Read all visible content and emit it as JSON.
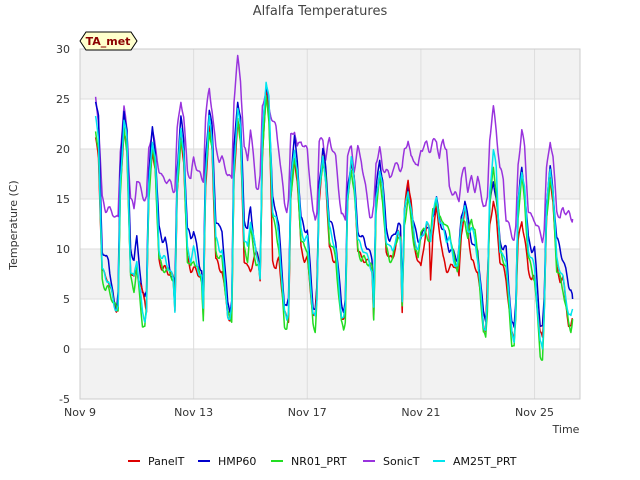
{
  "chart_data": {
    "type": "line",
    "title": "Alfalfa Temperatures",
    "xlabel": "Time",
    "ylabel": "Temperature (C)",
    "tag": "TA_met",
    "xlim": [
      0,
      17.6
    ],
    "ylim": [
      -5,
      30
    ],
    "y_ticks": [
      -5,
      0,
      5,
      10,
      15,
      20,
      25,
      30
    ],
    "x_ticks": [
      {
        "value": 0,
        "label": "Nov 9"
      },
      {
        "value": 4,
        "label": "Nov 13"
      },
      {
        "value": 8,
        "label": "Nov 17"
      },
      {
        "value": 12,
        "label": "Nov 21"
      },
      {
        "value": 16,
        "label": "Nov 25"
      }
    ],
    "grid": true,
    "legend_position": "bottom",
    "days": 18,
    "series": [
      {
        "name": "PanelT",
        "color": "#dd0000",
        "days": [
          [
            7,
            4,
            21
          ],
          [
            7,
            4,
            22
          ],
          [
            8,
            4,
            20
          ],
          [
            8,
            4,
            21
          ],
          [
            8,
            3,
            22
          ],
          [
            8,
            3,
            23
          ],
          [
            8,
            7,
            26
          ],
          [
            9,
            3,
            19
          ],
          [
            9,
            6,
            19
          ],
          [
            9,
            3,
            19
          ],
          [
            9,
            3,
            18
          ],
          [
            9,
            4,
            17
          ],
          [
            8,
            7,
            14
          ],
          [
            8,
            7,
            14
          ],
          [
            8,
            7,
            15
          ],
          [
            7,
            4,
            13
          ],
          [
            7,
            4,
            17
          ],
          [
            7,
            3,
            17
          ]
        ],
        "tmins": [
          3,
          4,
          5,
          7,
          7,
          3,
          9,
          3,
          3,
          3,
          8,
          11,
          12,
          8,
          2,
          1,
          1,
          2
        ]
      },
      {
        "name": "HMP60",
        "color": "#0000cc",
        "days": [
          [
            9,
            5,
            25
          ],
          [
            9,
            6,
            24
          ],
          [
            11,
            6,
            22
          ],
          [
            11,
            6,
            23
          ],
          [
            12,
            5,
            24
          ],
          [
            12,
            5,
            25
          ],
          [
            14,
            8,
            26
          ],
          [
            12,
            5,
            21
          ],
          [
            12,
            6,
            20
          ],
          [
            11,
            5,
            19
          ],
          [
            11,
            5,
            19
          ],
          [
            11,
            6,
            16
          ],
          [
            11,
            11,
            15
          ],
          [
            10,
            10,
            15
          ],
          [
            10,
            6,
            17
          ],
          [
            10,
            5,
            18
          ],
          [
            10,
            5,
            18
          ],
          [
            9,
            5,
            18
          ]
        ],
        "tmins": [
          3,
          4,
          5,
          7,
          8,
          4,
          9,
          4,
          4,
          4,
          9,
          12,
          12,
          9,
          3,
          2,
          2,
          6
        ]
      },
      {
        "name": "NR01_PRT",
        "color": "#22dd22",
        "days": [
          [
            6,
            4,
            22
          ],
          [
            6,
            4,
            22
          ],
          [
            8,
            4,
            20
          ],
          [
            8,
            4,
            21
          ],
          [
            9,
            3,
            22
          ],
          [
            9,
            3,
            23
          ],
          [
            12,
            7,
            25
          ],
          [
            10,
            3,
            19
          ],
          [
            10,
            5,
            19
          ],
          [
            9,
            3,
            18
          ],
          [
            9,
            3,
            17
          ],
          [
            9,
            4,
            15
          ],
          [
            12,
            11,
            15
          ],
          [
            12,
            9,
            13
          ],
          [
            9,
            4,
            18
          ],
          [
            8,
            3,
            17
          ],
          [
            7,
            3,
            17
          ],
          [
            6,
            3,
            17
          ]
        ],
        "tmins": [
          4,
          4,
          2,
          7,
          7,
          3,
          8,
          2,
          2,
          2,
          8,
          11,
          11,
          8,
          1,
          0,
          -1,
          2
        ]
      },
      {
        "name": "SonicT",
        "color": "#9933dd",
        "days": [
          [
            14,
            12,
            25
          ],
          [
            14,
            13,
            24
          ],
          [
            17,
            15,
            22
          ],
          [
            17,
            16,
            25
          ],
          [
            19,
            17,
            26
          ],
          [
            19,
            17,
            29
          ],
          [
            22,
            17,
            26
          ],
          [
            20,
            15,
            22
          ],
          [
            20,
            14,
            21
          ],
          [
            19,
            13,
            20
          ],
          [
            17,
            14,
            20
          ],
          [
            18,
            18,
            21
          ],
          [
            20,
            20,
            21
          ],
          [
            16,
            15,
            18
          ],
          [
            17,
            15,
            24
          ],
          [
            13,
            12,
            22
          ],
          [
            13,
            12,
            21
          ],
          [
            14,
            13,
            21
          ]
        ],
        "tmins": [
          13,
          13,
          15,
          16,
          17,
          17,
          16,
          14,
          13,
          13,
          13,
          18,
          20,
          15,
          14,
          11,
          11,
          13
        ]
      },
      {
        "name": "AM25T_PRT",
        "color": "#00e5ee",
        "days": [
          [
            7,
            4,
            23
          ],
          [
            7,
            4,
            23
          ],
          [
            9,
            4,
            21
          ],
          [
            9,
            4,
            22
          ],
          [
            10,
            4,
            23
          ],
          [
            10,
            4,
            24
          ],
          [
            13,
            7,
            27
          ],
          [
            11,
            4,
            20
          ],
          [
            11,
            5,
            19
          ],
          [
            10,
            4,
            19
          ],
          [
            10,
            4,
            18
          ],
          [
            10,
            5,
            16
          ],
          [
            11,
            11,
            15
          ],
          [
            11,
            10,
            14
          ],
          [
            9,
            5,
            20
          ],
          [
            9,
            4,
            18
          ],
          [
            8,
            4,
            18
          ],
          [
            7,
            4,
            18
          ]
        ],
        "tmins": [
          3,
          4,
          3,
          7,
          7,
          3,
          9,
          3,
          3,
          3,
          8,
          11,
          12,
          8,
          2,
          1,
          0,
          3
        ]
      }
    ]
  }
}
